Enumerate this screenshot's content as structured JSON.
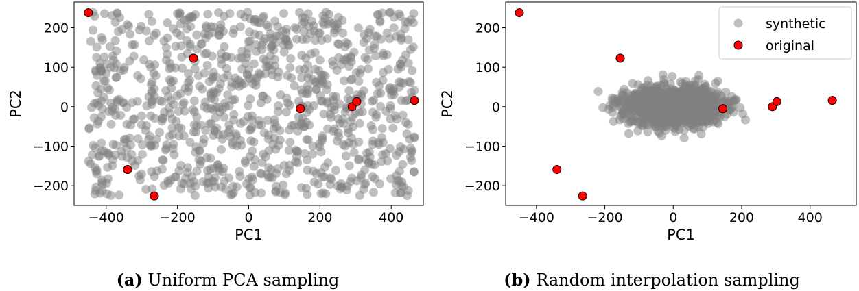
{
  "chart_data": [
    {
      "type": "scatter",
      "xlabel": "PC1",
      "ylabel": "PC2",
      "xlim": [
        -490,
        490
      ],
      "ylim": [
        -250,
        265
      ],
      "xticks": [
        -400,
        -200,
        0,
        200,
        400
      ],
      "yticks": [
        -200,
        -100,
        0,
        100,
        200
      ],
      "legend": null,
      "caption": {
        "label": "(a)",
        "text": "Uniform PCA sampling"
      },
      "series": [
        {
          "name": "synthetic",
          "color": "#808080",
          "count": 1000,
          "distribution": "uniform",
          "x_range": [
            -450,
            465
          ],
          "y_range": [
            -225,
            240
          ],
          "seed": 11
        },
        {
          "name": "original",
          "color": "#ff0000",
          "points": [
            [
              -450,
              238
            ],
            [
              -155,
              123
            ],
            [
              145,
              -5
            ],
            [
              290,
              0
            ],
            [
              303,
              13
            ],
            [
              465,
              16
            ],
            [
              -340,
              -159
            ],
            [
              -265,
              -226
            ]
          ]
        }
      ]
    },
    {
      "type": "scatter",
      "xlabel": "PC1",
      "ylabel": "PC2",
      "xlim": [
        -490,
        535
      ],
      "ylim": [
        -250,
        265
      ],
      "xticks": [
        -400,
        -200,
        0,
        200,
        400
      ],
      "yticks": [
        -200,
        -100,
        0,
        100,
        200
      ],
      "legend": "top-right",
      "caption": {
        "label": "(b)",
        "text": "Random interpolation sampling"
      },
      "series": [
        {
          "name": "synthetic",
          "color": "#808080",
          "count": 1200,
          "distribution": "gaussian",
          "x_center": 0,
          "y_center": 0,
          "x_spread": 70,
          "y_spread": 25,
          "seed": 23
        },
        {
          "name": "original",
          "color": "#ff0000",
          "points": [
            [
              -450,
              238
            ],
            [
              -155,
              123
            ],
            [
              145,
              -5
            ],
            [
              290,
              0
            ],
            [
              303,
              13
            ],
            [
              465,
              16
            ],
            [
              -340,
              -159
            ],
            [
              -265,
              -226
            ]
          ]
        }
      ]
    }
  ]
}
